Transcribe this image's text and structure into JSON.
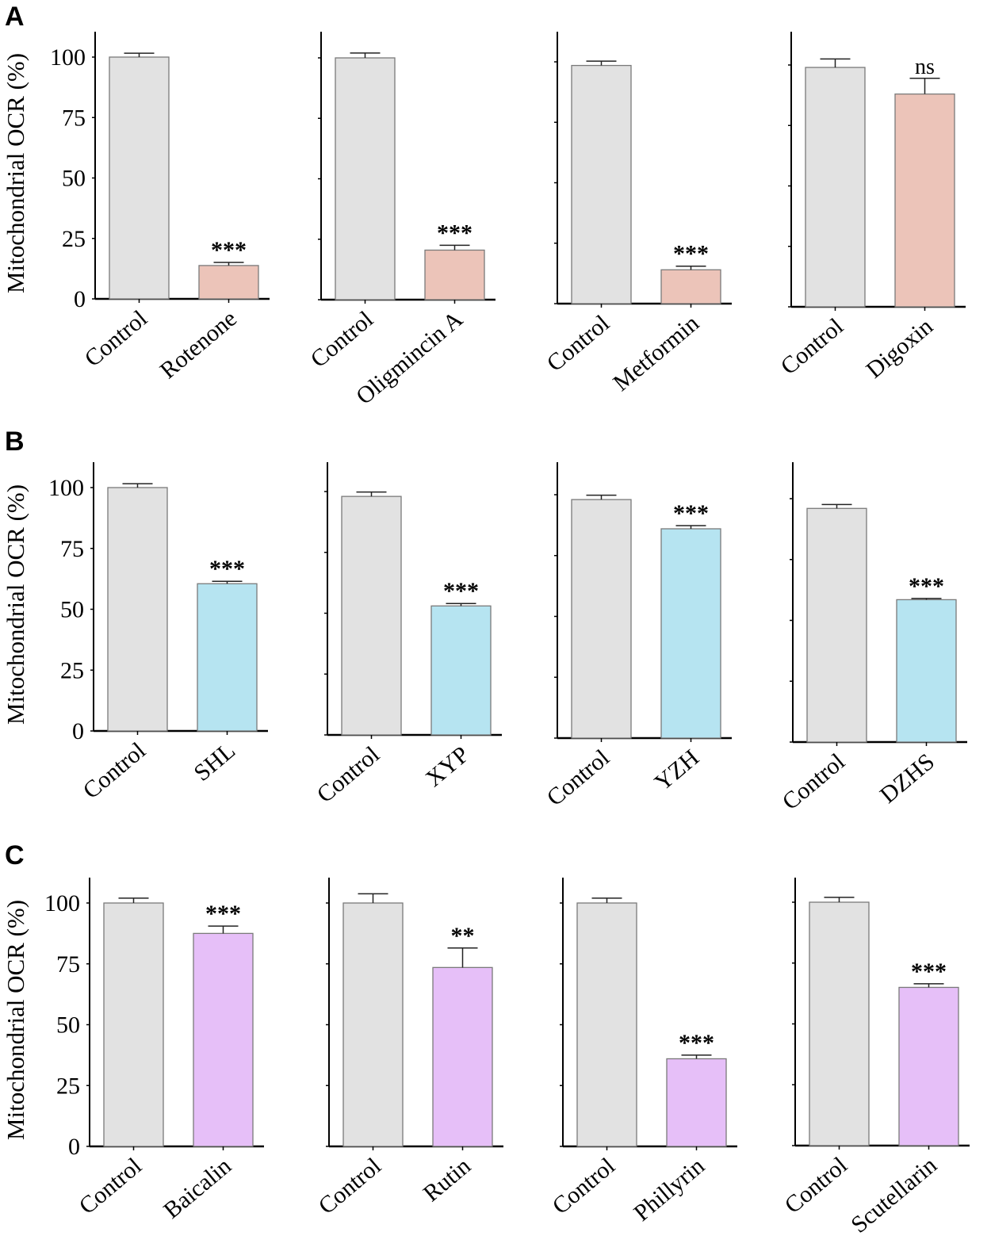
{
  "colors": {
    "control_fill": "#e2e2e2",
    "bar_stroke": "#7a7a7a",
    "row_A_fill": "#ecc4b9",
    "row_B_fill": "#b6e4f1",
    "row_C_fill": "#e6bff8"
  },
  "chart_data": [
    {
      "type": "bar",
      "panel_letter": "A",
      "ylabel": "Mitochondrial OCR (%)",
      "ylim": [
        0,
        110
      ],
      "yticks": [
        "0",
        "25",
        "50",
        "75",
        "100"
      ],
      "panels": [
        {
          "categories": [
            "Control",
            "Rotenone"
          ],
          "values": [
            100,
            13.8
          ],
          "errors": [
            1.6,
            1.3
          ],
          "significance": "***"
        },
        {
          "categories": [
            "Control",
            "Oligmincin A"
          ],
          "values": [
            100,
            20.5
          ],
          "errors": [
            2,
            2
          ],
          "significance": "***"
        },
        {
          "categories": [
            "Control",
            "Metformin"
          ],
          "values": [
            98.5,
            14
          ],
          "errors": [
            1.8,
            1.5
          ],
          "significance": "***"
        },
        {
          "categories": [
            "Control",
            "Digoxin"
          ],
          "values": [
            99,
            88
          ],
          "errors": [
            3.5,
            6.5
          ],
          "significance": "ns"
        }
      ]
    },
    {
      "type": "bar",
      "panel_letter": "B",
      "ylabel": "Mitochondrial OCR (%)",
      "ylim": [
        0,
        110
      ],
      "yticks": [
        "0",
        "25",
        "50",
        "75",
        "100"
      ],
      "panels": [
        {
          "categories": [
            "Control",
            "SHL"
          ],
          "values": [
            100,
            60.5
          ],
          "errors": [
            1.6,
            1
          ],
          "significance": "***"
        },
        {
          "categories": [
            "Control",
            "XYP"
          ],
          "values": [
            98,
            53
          ],
          "errors": [
            1.8,
            1
          ],
          "significance": "***"
        },
        {
          "categories": [
            "Control",
            "YZH"
          ],
          "values": [
            98,
            86
          ],
          "errors": [
            1.8,
            1.3
          ],
          "significance": "***"
        },
        {
          "categories": [
            "Control",
            "DZHS"
          ],
          "values": [
            96,
            58.5
          ],
          "errors": [
            1.6,
            0.5
          ],
          "significance": "***"
        }
      ]
    },
    {
      "type": "bar",
      "panel_letter": "C",
      "ylabel": "Mitochondrial OCR (%)",
      "ylim": [
        0,
        110
      ],
      "yticks": [
        "0",
        "25",
        "50",
        "75",
        "100"
      ],
      "panels": [
        {
          "categories": [
            "Control",
            "Baicalin"
          ],
          "values": [
            100,
            87.5
          ],
          "errors": [
            2,
            3
          ],
          "significance": "***"
        },
        {
          "categories": [
            "Control",
            "Rutin"
          ],
          "values": [
            100,
            73.5
          ],
          "errors": [
            3.8,
            8
          ],
          "significance": "**"
        },
        {
          "categories": [
            "Control",
            "Phillyrin"
          ],
          "values": [
            100,
            36
          ],
          "errors": [
            2,
            1.5
          ],
          "significance": "***"
        },
        {
          "categories": [
            "Control",
            "Scutellarin"
          ],
          "values": [
            100,
            65
          ],
          "errors": [
            2,
            1.5
          ],
          "significance": "***"
        }
      ]
    }
  ]
}
